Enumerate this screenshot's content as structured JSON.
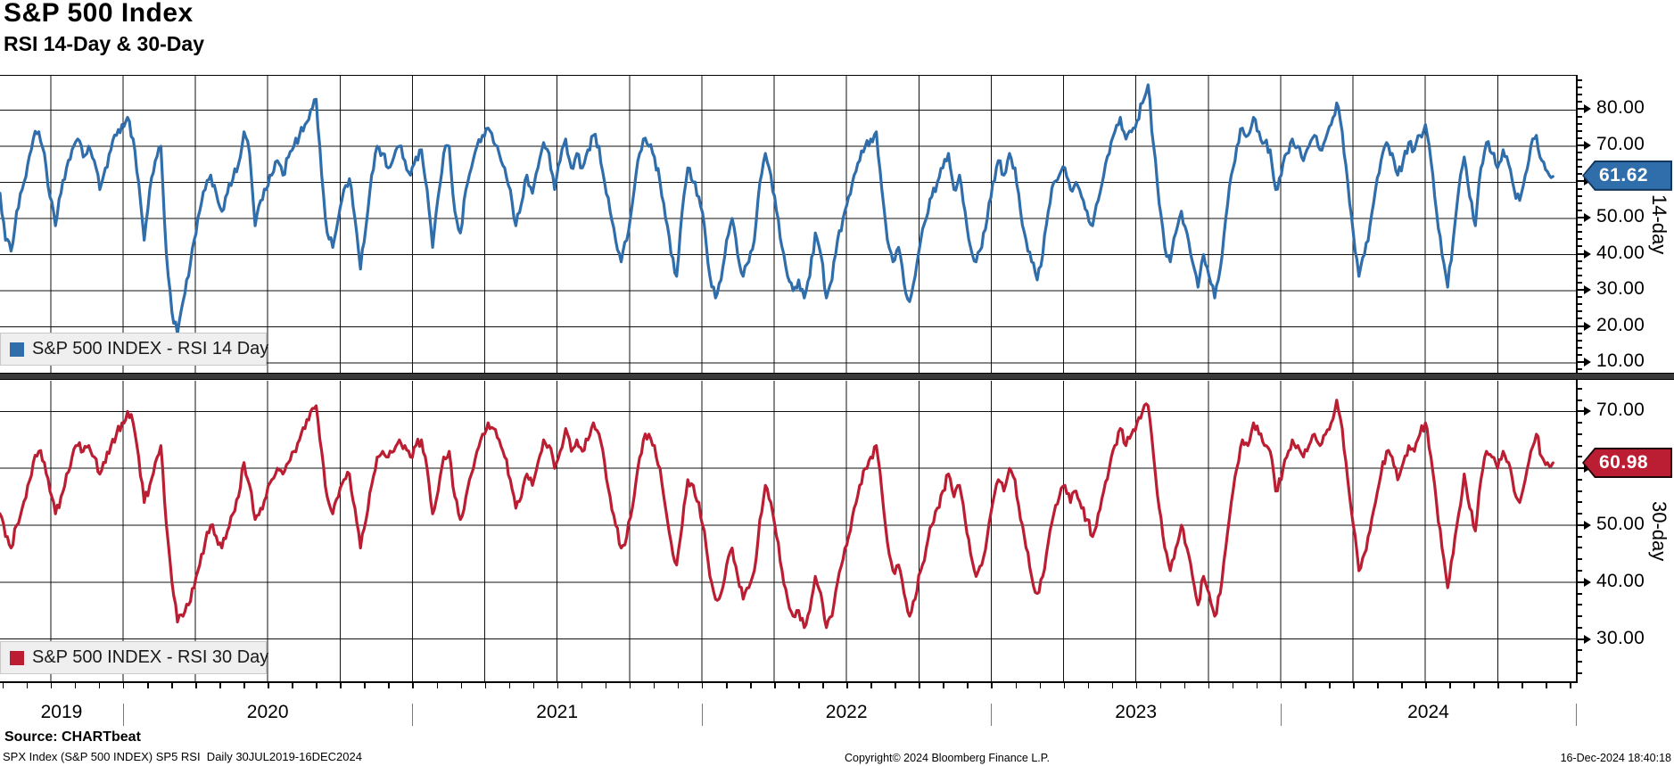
{
  "header": {
    "title": "S&P 500 Index",
    "subtitle": "RSI 14-Day & 30-Day"
  },
  "x_axis": {
    "years": [
      "2019",
      "2020",
      "2021",
      "2022",
      "2023",
      "2024"
    ]
  },
  "footer": {
    "source": "Source: CHARTbeat",
    "description": "SPX Index (S&P 500 INDEX) SP5 RSI  Daily 30JUL2019-16DEC2024",
    "copyright": "Copyright© 2024 Bloomberg Finance L.P.",
    "timestamp": "16-Dec-2024 18:40:18"
  },
  "chart_data": [
    {
      "type": "line",
      "title": "S&P 500 INDEX - RSI 14 Day",
      "axis_label": "14-day",
      "last_value": "61.62",
      "color": "#2f6dab",
      "badge_fill": "#2f6dab",
      "badge_border": "#14365a",
      "ylim": [
        6.8,
        89.5
      ],
      "yticks": [
        10,
        20,
        30,
        40,
        50,
        60,
        70,
        80
      ],
      "x_start_year": 2019.575,
      "x_end_year": 2024.958,
      "x_step_weeks": 1,
      "values": [
        57,
        44,
        41,
        52,
        58,
        65,
        72,
        74,
        68,
        56,
        48,
        57,
        64,
        69,
        72,
        67,
        70,
        66,
        58,
        64,
        69,
        73,
        76,
        78,
        72,
        60,
        44,
        58,
        66,
        70,
        40,
        24,
        18,
        27,
        34,
        44,
        52,
        58,
        62,
        57,
        52,
        57,
        61,
        65,
        74,
        68,
        48,
        55,
        58,
        62,
        66,
        62,
        67,
        70,
        73,
        76,
        80,
        83,
        62,
        46,
        42,
        50,
        58,
        61,
        50,
        36,
        48,
        62,
        70,
        68,
        64,
        67,
        70,
        66,
        62,
        67,
        69,
        58,
        42,
        56,
        68,
        70,
        52,
        46,
        58,
        64,
        70,
        73,
        75,
        71,
        68,
        64,
        58,
        48,
        54,
        62,
        57,
        64,
        71,
        68,
        58,
        66,
        72,
        64,
        68,
        64,
        69,
        73,
        70,
        60,
        52,
        44,
        38,
        44,
        54,
        66,
        72,
        70,
        67,
        60,
        50,
        40,
        34,
        52,
        64,
        60,
        56,
        48,
        34,
        28,
        33,
        44,
        50,
        40,
        34,
        38,
        44,
        60,
        68,
        62,
        52,
        42,
        34,
        30,
        33,
        28,
        34,
        46,
        40,
        28,
        33,
        44,
        50,
        56,
        62,
        66,
        70,
        72,
        74,
        58,
        44,
        38,
        42,
        32,
        27,
        34,
        44,
        50,
        56,
        60,
        64,
        68,
        58,
        62,
        52,
        42,
        38,
        42,
        50,
        60,
        66,
        62,
        68,
        64,
        52,
        44,
        38,
        33,
        40,
        52,
        60,
        62,
        64,
        58,
        60,
        56,
        52,
        48,
        55,
        62,
        68,
        74,
        78,
        72,
        74,
        77,
        82,
        87,
        70,
        54,
        42,
        38,
        46,
        52,
        46,
        38,
        31,
        40,
        34,
        28,
        36,
        50,
        62,
        70,
        75,
        73,
        78,
        74,
        71,
        69,
        58,
        62,
        68,
        72,
        70,
        66,
        70,
        73,
        69,
        72,
        76,
        82,
        74,
        60,
        46,
        34,
        40,
        48,
        58,
        66,
        71,
        68,
        62,
        66,
        71,
        69,
        73,
        76,
        66,
        52,
        40,
        31,
        44,
        58,
        67,
        56,
        48,
        64,
        71,
        68,
        64,
        69,
        65,
        58,
        55,
        62,
        70,
        73,
        66,
        63,
        61.62
      ]
    },
    {
      "type": "line",
      "title": "S&P 500 INDEX - RSI 30 Day",
      "axis_label": "30-day",
      "last_value": "60.98",
      "color": "#bb1e32",
      "badge_fill": "#bb1e32",
      "badge_border": "#20070c",
      "ylim": [
        22.4,
        75.4
      ],
      "yticks": [
        30,
        40,
        50,
        60,
        70
      ],
      "x_start_year": 2019.575,
      "x_end_year": 2024.958,
      "x_step_weeks": 1,
      "values": [
        52,
        48,
        46,
        50,
        53,
        57,
        61,
        63,
        61,
        56,
        52,
        55,
        59,
        62,
        64,
        63,
        64,
        62,
        59,
        61,
        64,
        66,
        68,
        70,
        68,
        62,
        54,
        57,
        61,
        64,
        50,
        40,
        33,
        34,
        36,
        39,
        43,
        47,
        50,
        48,
        46,
        49,
        52,
        55,
        61,
        57,
        51,
        53,
        55,
        58,
        60,
        59,
        61,
        63,
        65,
        67,
        70,
        71,
        63,
        55,
        52,
        55,
        58,
        59,
        53,
        46,
        51,
        57,
        62,
        63,
        62,
        63,
        65,
        64,
        62,
        64,
        65,
        60,
        52,
        56,
        62,
        63,
        55,
        51,
        55,
        59,
        63,
        66,
        68,
        67,
        65,
        62,
        58,
        53,
        55,
        59,
        57,
        61,
        65,
        64,
        60,
        63,
        67,
        63,
        65,
        63,
        65,
        68,
        66,
        61,
        55,
        50,
        46,
        48,
        53,
        60,
        65,
        66,
        64,
        60,
        53,
        47,
        43,
        50,
        58,
        57,
        54,
        49,
        41,
        37,
        38,
        43,
        46,
        41,
        37,
        39,
        42,
        51,
        57,
        54,
        48,
        42,
        37,
        34,
        35,
        32,
        35,
        41,
        38,
        32,
        34,
        40,
        44,
        48,
        53,
        57,
        60,
        62,
        64,
        56,
        47,
        42,
        43,
        38,
        34,
        37,
        42,
        46,
        50,
        53,
        56,
        59,
        55,
        57,
        51,
        45,
        41,
        43,
        48,
        54,
        58,
        56,
        60,
        58,
        51,
        46,
        41,
        38,
        41,
        47,
        52,
        55,
        57,
        54,
        56,
        53,
        51,
        48,
        52,
        56,
        60,
        64,
        67,
        64,
        66,
        68,
        70,
        71,
        62,
        53,
        46,
        42,
        46,
        50,
        46,
        41,
        36,
        41,
        38,
        34,
        38,
        46,
        54,
        60,
        65,
        64,
        68,
        66,
        64,
        63,
        56,
        58,
        62,
        65,
        64,
        62,
        64,
        66,
        64,
        66,
        68,
        72,
        67,
        58,
        50,
        42,
        45,
        49,
        54,
        59,
        63,
        62,
        58,
        61,
        64,
        63,
        66,
        68,
        62,
        54,
        46,
        39,
        45,
        52,
        59,
        53,
        49,
        58,
        63,
        62,
        60,
        63,
        61,
        56,
        54,
        58,
        63,
        66,
        62,
        61,
        60.98
      ]
    }
  ]
}
